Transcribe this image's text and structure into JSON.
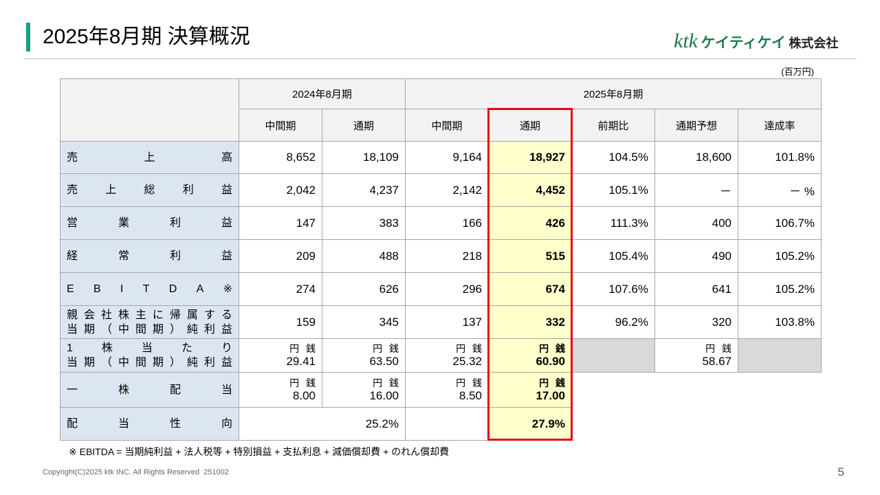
{
  "header": {
    "title": "2025年8月期 決算概況",
    "logo": {
      "brand": "ktk",
      "kana": "ケイティケイ",
      "company": "株式会社"
    },
    "unit": "(百万円)"
  },
  "table": {
    "groups": [
      "2024年8月期",
      "2025年8月期"
    ],
    "columns": [
      "中間期",
      "通期",
      "中間期",
      "通期",
      "前期比",
      "通期予想",
      "達成率"
    ],
    "rows": [
      {
        "label": [
          "売上高"
        ],
        "cells": [
          "8,652",
          "18,109",
          "9,164",
          "18,927",
          "104.5%",
          "18,600",
          "101.8%"
        ]
      },
      {
        "label": [
          "売上総利益"
        ],
        "cells": [
          "2,042",
          "4,237",
          "2,142",
          "4,452",
          "105.1%",
          "－",
          "－ %"
        ]
      },
      {
        "label": [
          "営業利益"
        ],
        "cells": [
          "147",
          "383",
          "166",
          "426",
          "111.3%",
          "400",
          "106.7%"
        ]
      },
      {
        "label": [
          "経常利益"
        ],
        "cells": [
          "209",
          "488",
          "218",
          "515",
          "105.4%",
          "490",
          "105.2%"
        ]
      },
      {
        "label": [
          "EBITDA※"
        ],
        "cells": [
          "274",
          "626",
          "296",
          "674",
          "107.6%",
          "641",
          "105.2%"
        ]
      },
      {
        "label": [
          "親会社株主に帰属する",
          "当期（中間期）純利益"
        ],
        "cells": [
          "159",
          "345",
          "137",
          "332",
          "96.2%",
          "320",
          "103.8%"
        ]
      },
      {
        "label": [
          "1株当たり",
          "当期（中間期）純利益"
        ],
        "cells": [
          {
            "unit": "円 銭",
            "value": "29.41"
          },
          {
            "unit": "円 銭",
            "value": "63.50"
          },
          {
            "unit": "円 銭",
            "value": "25.32"
          },
          {
            "unit": "円 銭",
            "value": "60.90"
          },
          null,
          {
            "unit": "円 銭",
            "value": "58.67"
          },
          null
        ]
      },
      {
        "label": [
          "一株配当"
        ],
        "cells": [
          {
            "unit": "円 銭",
            "value": "8.00"
          },
          {
            "unit": "円 銭",
            "value": "16.00"
          },
          {
            "unit": "円 銭",
            "value": "8.50"
          },
          {
            "unit": "円 銭",
            "value": "17.00"
          }
        ]
      },
      {
        "label": [
          "配当性向"
        ],
        "cells": [
          "25.2%",
          null,
          "27.9%"
        ]
      }
    ]
  },
  "footnote": "※ EBITDA = 当期純利益 + 法人税等 + 特別損益 + 支払利息 + 減価償却費 + のれん償却費",
  "footer": {
    "copyright": "Copyright(C)2025 ktk INC. All Rights Reserved  251002",
    "page": "5"
  }
}
